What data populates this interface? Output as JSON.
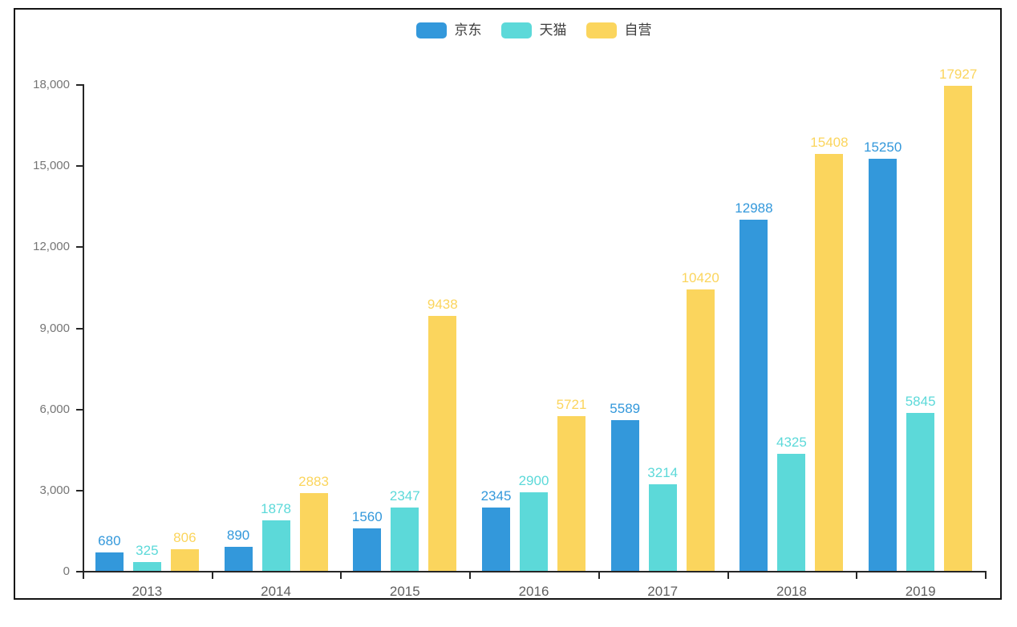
{
  "chart_data": {
    "type": "bar",
    "title": "",
    "xlabel": "",
    "ylabel": "",
    "categories": [
      "2013",
      "2014",
      "2015",
      "2016",
      "2017",
      "2018",
      "2019"
    ],
    "series": [
      {
        "name": "京东",
        "color": "#3398DB",
        "values": [
          680,
          890,
          1560,
          2345,
          5589,
          12988,
          15250
        ]
      },
      {
        "name": "天猫",
        "color": "#5CD9D9",
        "values": [
          325,
          1878,
          2347,
          2900,
          3214,
          4325,
          5845
        ]
      },
      {
        "name": "自营",
        "color": "#FBD55D",
        "values": [
          806,
          2883,
          9438,
          5721,
          10420,
          15408,
          17927
        ]
      }
    ],
    "ylim": [
      0,
      18000
    ],
    "yticks": [
      0,
      3000,
      6000,
      9000,
      12000,
      15000,
      18000
    ],
    "ytick_labels": [
      "0",
      "3,000",
      "6,000",
      "9,000",
      "12,000",
      "15,000",
      "18,000"
    ],
    "grid": false,
    "legend_position": "top-center",
    "value_labels_visible": true
  },
  "style": {
    "axis_color": "#262626",
    "ytick_text_color": "#757575",
    "xtick_text_color": "#5f5f5f",
    "legend_text_color": "#3d3d3d",
    "frame_border_color": "#141414",
    "background_color": "#ffffff"
  },
  "layout_values": {
    "note": "grouped bar chart, no gridlines, value labels above bars colored per series"
  }
}
